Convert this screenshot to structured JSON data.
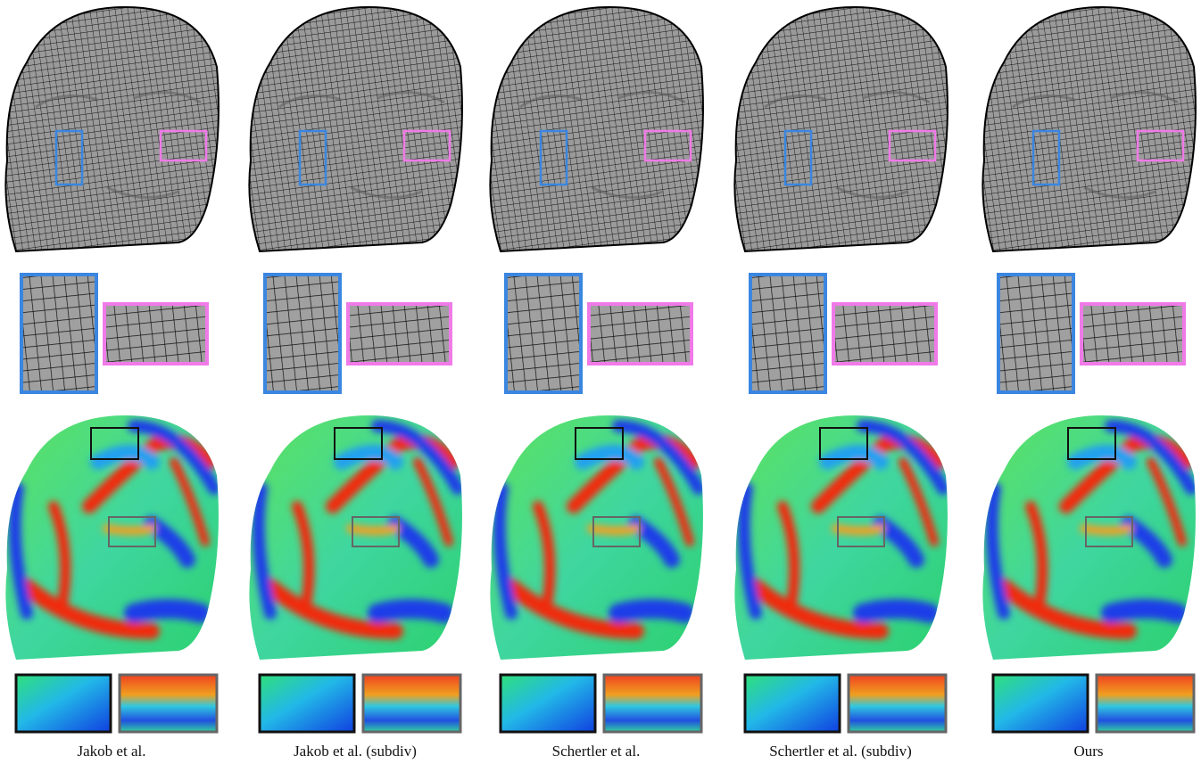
{
  "columns": [
    {
      "label": "Jakob et al."
    },
    {
      "label": "Jakob et al. (subdiv)"
    },
    {
      "label": "Schertler et al."
    },
    {
      "label": "Schertler et al. (subdiv)"
    },
    {
      "label": "Ours"
    }
  ]
}
